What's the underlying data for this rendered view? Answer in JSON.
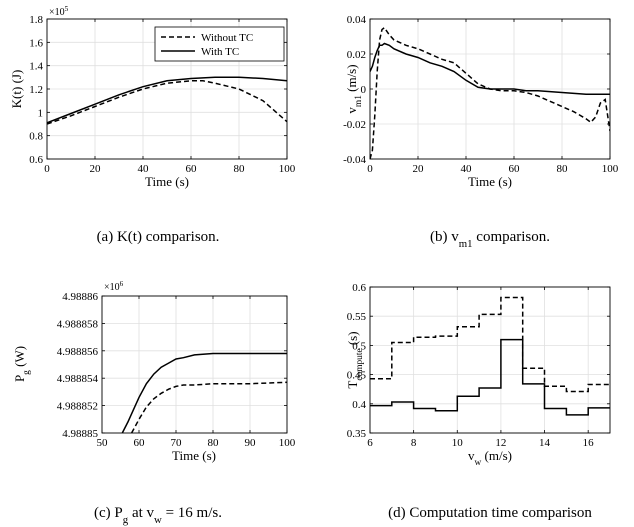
{
  "captions": [
    "(a) K(t) comparison.",
    "(b) v_m1 comparison.",
    "(c) P_g at v_w = 16 m/s.",
    "(d) Computation time comparison"
  ],
  "chart_data": [
    {
      "type": "line",
      "id": "a",
      "xlabel": "Time (s)",
      "ylabel": "K(t) (J)",
      "y_multiplier": "×10^5",
      "xlim": [
        0,
        100
      ],
      "ylim": [
        0.6,
        1.8
      ],
      "xticks": [
        0,
        20,
        40,
        60,
        80,
        100
      ],
      "yticks": [
        0.6,
        0.8,
        1,
        1.2,
        1.4,
        1.6,
        1.8
      ],
      "ytick_labels": [
        "0.6",
        "0.8",
        "1",
        "1.2",
        "1.4",
        "1.6",
        "1.8"
      ],
      "legend_position": "top-right",
      "series": [
        {
          "name": "Without TC",
          "style": "dashed",
          "x": [
            0,
            10,
            20,
            30,
            40,
            50,
            60,
            65,
            70,
            80,
            90,
            100
          ],
          "y": [
            0.9,
            0.97,
            1.05,
            1.13,
            1.2,
            1.25,
            1.27,
            1.27,
            1.25,
            1.2,
            1.1,
            0.92
          ]
        },
        {
          "name": "With TC",
          "style": "solid",
          "x": [
            0,
            10,
            20,
            30,
            40,
            50,
            60,
            70,
            80,
            90,
            100
          ],
          "y": [
            0.91,
            0.99,
            1.07,
            1.15,
            1.22,
            1.27,
            1.29,
            1.3,
            1.3,
            1.29,
            1.27
          ]
        }
      ]
    },
    {
      "type": "line",
      "id": "b",
      "xlabel": "Time (s)",
      "ylabel": "v_m1 (m/s)",
      "xlim": [
        0,
        100
      ],
      "ylim": [
        -0.04,
        0.04
      ],
      "xticks": [
        0,
        20,
        40,
        60,
        80,
        100
      ],
      "yticks": [
        -0.04,
        -0.02,
        0,
        0.02,
        0.04
      ],
      "ytick_labels": [
        "-0.04",
        "-0.02",
        "0",
        "0.02",
        "0.04"
      ],
      "series": [
        {
          "style": "dashed",
          "x": [
            0,
            1,
            2,
            3,
            4,
            5,
            6,
            8,
            10,
            15,
            20,
            25,
            30,
            35,
            40,
            45,
            50,
            55,
            60,
            65,
            70,
            75,
            80,
            85,
            90,
            92,
            94,
            96,
            98,
            100
          ],
          "y": [
            -0.04,
            -0.035,
            -0.015,
            0.01,
            0.028,
            0.034,
            0.035,
            0.031,
            0.028,
            0.025,
            0.023,
            0.02,
            0.017,
            0.015,
            0.009,
            0.003,
            0.0,
            -0.001,
            -0.001,
            -0.002,
            -0.004,
            -0.007,
            -0.01,
            -0.013,
            -0.017,
            -0.019,
            -0.016,
            -0.008,
            -0.006,
            -0.024
          ]
        },
        {
          "style": "solid",
          "x": [
            0,
            1,
            2,
            3,
            4,
            5,
            6,
            8,
            10,
            15,
            20,
            25,
            30,
            35,
            40,
            45,
            50,
            55,
            60,
            65,
            70,
            80,
            90,
            100
          ],
          "y": [
            0.01,
            0.013,
            0.018,
            0.022,
            0.025,
            0.025,
            0.026,
            0.025,
            0.023,
            0.02,
            0.018,
            0.015,
            0.013,
            0.01,
            0.005,
            0.001,
            0.0,
            0.0,
            0.0,
            -0.001,
            -0.001,
            -0.002,
            -0.003,
            -0.003
          ]
        }
      ]
    },
    {
      "type": "line",
      "id": "c",
      "xlabel": "Time (s)",
      "ylabel": "P_g (W)",
      "y_multiplier": "×10^6",
      "xlim": [
        50,
        100
      ],
      "ylim": [
        4.98885,
        4.98886
      ],
      "xticks": [
        50,
        60,
        70,
        80,
        90,
        100
      ],
      "yticks": [
        4.98885,
        4.988852,
        4.988854,
        4.988856,
        4.988858,
        4.98886
      ],
      "ytick_labels": [
        "4.98885",
        "4.988852",
        "4.988854",
        "4.988856",
        "4.988858",
        "4.98886"
      ],
      "series": [
        {
          "style": "dashed",
          "x": [
            58,
            59,
            60,
            62,
            64,
            66,
            68,
            70,
            72,
            75,
            80,
            85,
            90,
            100
          ],
          "y": [
            4.98885,
            4.9888505,
            4.988851,
            4.9888519,
            4.9888525,
            4.9888529,
            4.9888532,
            4.9888534,
            4.9888535,
            4.9888535,
            4.9888536,
            4.9888536,
            4.9888536,
            4.9888537
          ]
        },
        {
          "style": "solid",
          "x": [
            55.5,
            57,
            58,
            60,
            62,
            64,
            66,
            68,
            70,
            72,
            75,
            80,
            85,
            90,
            100
          ],
          "y": [
            4.98885,
            4.9888508,
            4.9888514,
            4.9888526,
            4.9888536,
            4.9888543,
            4.9888548,
            4.9888551,
            4.9888554,
            4.9888555,
            4.9888557,
            4.9888558,
            4.9888558,
            4.9888558,
            4.9888558
          ]
        }
      ]
    },
    {
      "type": "line",
      "id": "d",
      "xlabel": "v_w (m/s)",
      "ylabel": "T_compute (s)",
      "xlim": [
        6,
        17
      ],
      "ylim": [
        0.35,
        0.6
      ],
      "xticks": [
        6,
        8,
        10,
        12,
        14,
        16
      ],
      "yticks": [
        0.35,
        0.4,
        0.45,
        0.5,
        0.55,
        0.6
      ],
      "ytick_labels": [
        "0.35",
        "0.4",
        "0.45",
        "0.5",
        "0.55",
        "0.6"
      ],
      "series": [
        {
          "style": "dashed",
          "step": true,
          "edges": [
            6,
            7,
            8,
            9,
            10,
            11,
            12,
            13,
            14,
            15,
            16,
            17
          ],
          "values": [
            0.443,
            0.505,
            0.514,
            0.516,
            0.532,
            0.553,
            0.582,
            0.461,
            0.43,
            0.421,
            0.433
          ]
        },
        {
          "style": "solid",
          "step": true,
          "edges": [
            6,
            7,
            8,
            9,
            10,
            11,
            12,
            13,
            14,
            15,
            16,
            17
          ],
          "values": [
            0.397,
            0.403,
            0.392,
            0.388,
            0.413,
            0.427,
            0.51,
            0.434,
            0.392,
            0.381,
            0.393
          ]
        }
      ]
    }
  ]
}
